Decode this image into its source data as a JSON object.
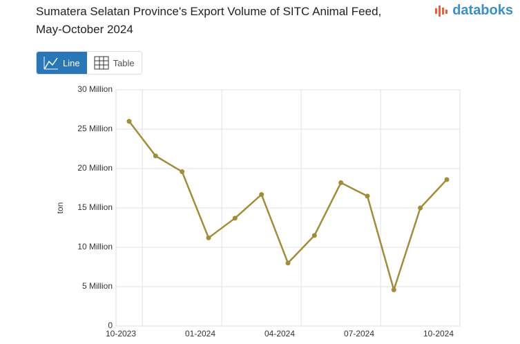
{
  "header": {
    "brand": "databoks"
  },
  "controls": {
    "line": "Line",
    "table": "Table"
  },
  "chart_data": {
    "type": "line",
    "title": "Sumatera Selatan Province's Export Volume of SITC Animal Feed, May-October 2024",
    "y_label": "ton",
    "categories": [
      "10-2023",
      null,
      null,
      "01-2024",
      null,
      null,
      "04-2024",
      null,
      null,
      "07-2024",
      null,
      null,
      "10-2024"
    ],
    "series": [
      {
        "name": "ton",
        "color": "#a08c3a",
        "values": [
          26000000,
          21600000,
          19600000,
          11200000,
          13700000,
          16700000,
          8000000,
          11500000,
          18200000,
          16500000,
          4600000,
          15000000,
          18600000
        ]
      }
    ],
    "ylim": [
      0,
      30000000
    ],
    "yticks": [
      0,
      {
        "value": 5000000,
        "label": "5 Million"
      },
      {
        "value": 10000000,
        "label": "10 Million"
      },
      {
        "value": 15000000,
        "label": "15 Million"
      },
      {
        "value": 20000000,
        "label": "20 Million"
      },
      {
        "value": 25000000,
        "label": "25 Million"
      },
      {
        "value": 30000000,
        "label": "30 Million"
      }
    ],
    "grid": true,
    "legend": false
  }
}
